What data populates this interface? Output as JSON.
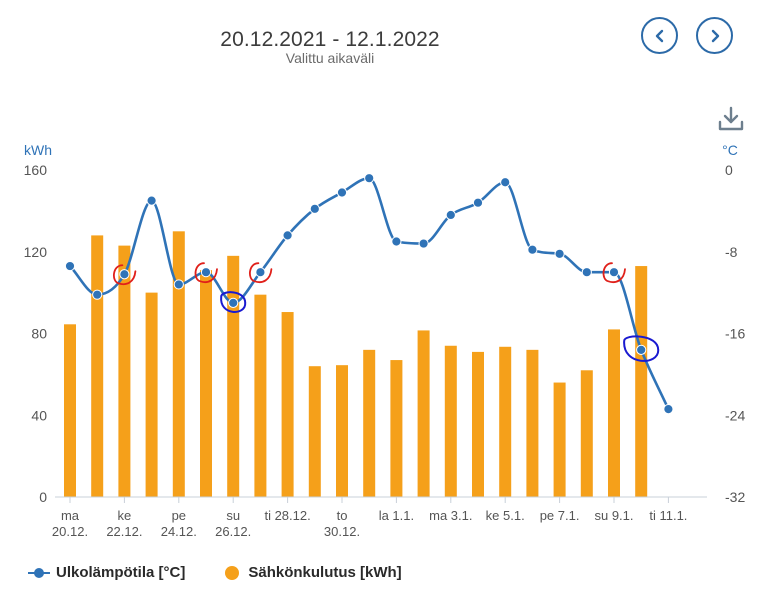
{
  "header": {
    "title": "20.12.2021 - 12.1.2022",
    "subtitle": "Valittu aikaväli"
  },
  "nav": {
    "prev_icon": "chevron-left-icon",
    "next_icon": "chevron-right-icon"
  },
  "toolbar": {
    "download_icon": "download-icon"
  },
  "colors": {
    "bars": "#f5a01a",
    "line": "#2f73b7",
    "axis_labels": "#555555",
    "unit_label": "#2f73b7",
    "annotation_red": "#e0201a",
    "annotation_blue": "#1a1ad0"
  },
  "chart_data": {
    "type": "bar",
    "left_axis": {
      "unit": "kWh",
      "ticks": [
        "160",
        "120",
        "80",
        "40",
        "0"
      ],
      "range": [
        0,
        160
      ]
    },
    "right_axis": {
      "unit": "°C",
      "ticks": [
        "0",
        "-8",
        "-16",
        "-24",
        "-32"
      ],
      "range": [
        -32,
        0
      ]
    },
    "x_tick_labels": [
      [
        "ma",
        "20.12."
      ],
      [
        "ke",
        "22.12."
      ],
      [
        "pe",
        "24.12."
      ],
      [
        "su",
        "26.12."
      ],
      [
        "ti 28.12."
      ],
      [
        "to",
        "30.12."
      ],
      [
        "la 1.1."
      ],
      [
        "ma 3.1."
      ],
      [
        "ke 5.1."
      ],
      [
        "pe 7.1."
      ],
      [
        "su 9.1."
      ],
      [
        "ti 11.1."
      ]
    ],
    "categories": [
      "20.12.",
      "21.12.",
      "22.12.",
      "23.12.",
      "24.12.",
      "25.12.",
      "26.12.",
      "27.12.",
      "28.12.",
      "29.12.",
      "30.12.",
      "31.12.",
      "1.1.",
      "2.1.",
      "3.1.",
      "4.1.",
      "5.1.",
      "6.1.",
      "7.1.",
      "8.1.",
      "9.1.",
      "10.1.",
      "11.1."
    ],
    "series": [
      {
        "name": "Sähkönkulutus [kWh]",
        "type": "bar",
        "axis": "left",
        "values": [
          84.5,
          128,
          123,
          100,
          130,
          111,
          118,
          99,
          90.5,
          64,
          64.5,
          72,
          67,
          81.5,
          74,
          71,
          73.5,
          72,
          56,
          62,
          82,
          113,
          null
        ]
      },
      {
        "name": "Ulkolämpötila [°C]",
        "type": "line",
        "axis": "right",
        "values": [
          -9.4,
          -12.2,
          -10.2,
          -3,
          -11.2,
          -10,
          -13,
          -10,
          -6.4,
          -3.8,
          -2.2,
          -0.8,
          -7,
          -7.2,
          -4.4,
          -3.2,
          -1.2,
          -7.8,
          -8.2,
          -10,
          -10,
          -17.6,
          -23.4
        ]
      }
    ],
    "legend": [
      "Ulkolämpötila [°C]",
      "Sähkönkulutus [kWh]"
    ],
    "legend_position": "bottom-left",
    "grid": false
  }
}
